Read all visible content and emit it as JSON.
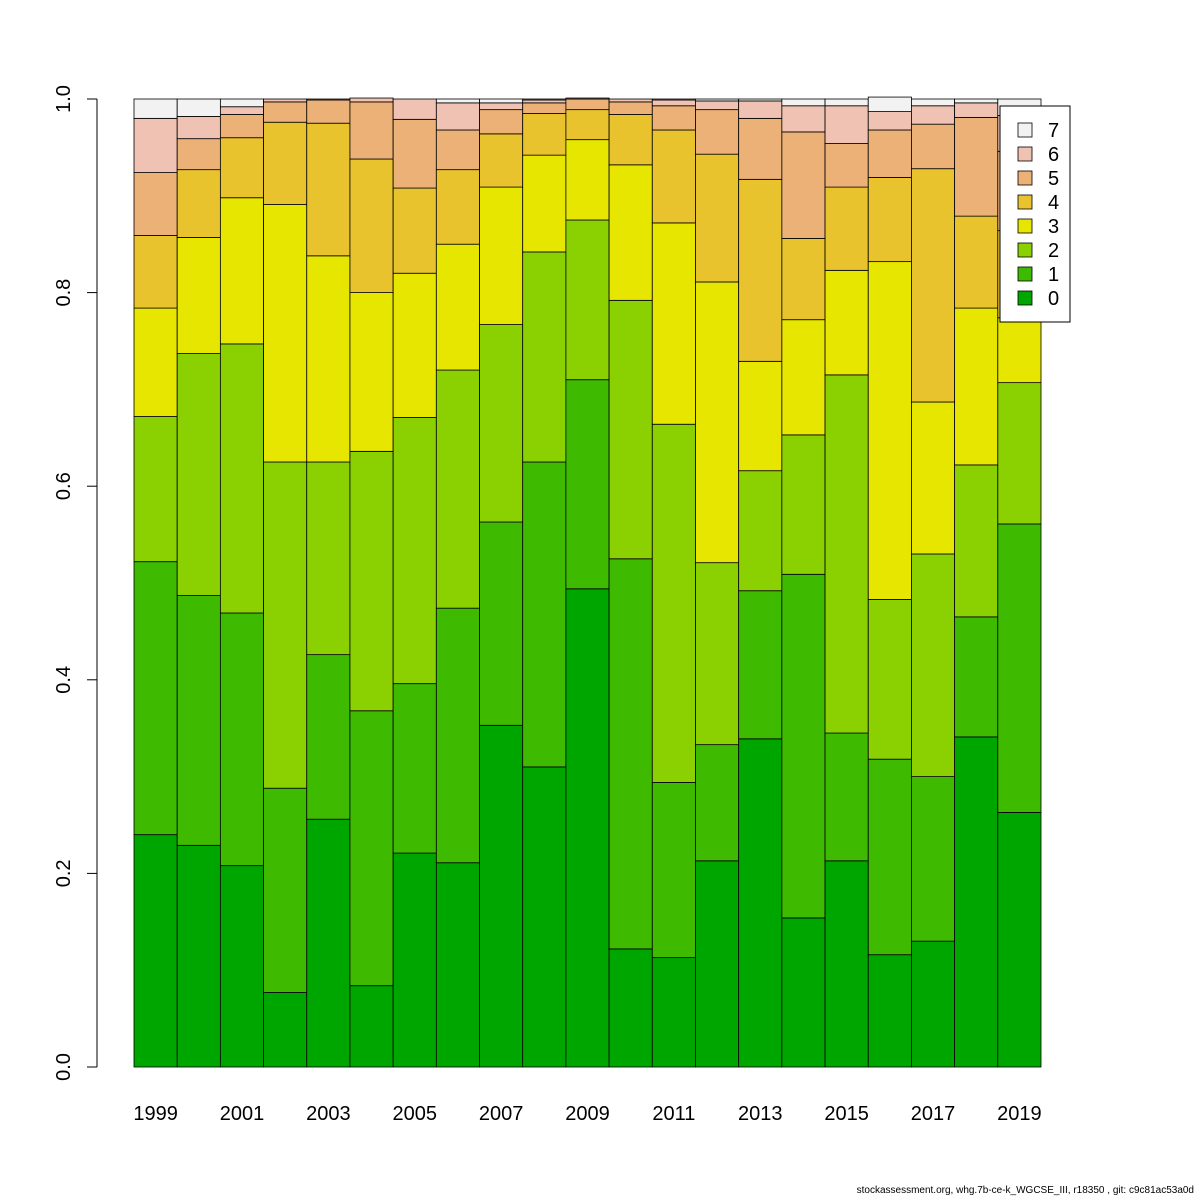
{
  "chart_data": {
    "type": "bar",
    "stacked": true,
    "title": "",
    "xlabel": "",
    "ylabel": "",
    "ylim": [
      0,
      1
    ],
    "yticks": [
      "0.0",
      "0.2",
      "0.4",
      "0.6",
      "0.8",
      "1.0"
    ],
    "ytick_values": [
      0,
      0.2,
      0.4,
      0.6,
      0.8,
      1.0
    ],
    "categories": [
      "1999",
      "2000",
      "2001",
      "2002",
      "2003",
      "2004",
      "2005",
      "2006",
      "2007",
      "2008",
      "2009",
      "2010",
      "2011",
      "2012",
      "2013",
      "2014",
      "2015",
      "2016",
      "2017",
      "2018",
      "2019"
    ],
    "xtick_labels": [
      "1999",
      "",
      "2001",
      "",
      "2003",
      "",
      "2005",
      "",
      "2007",
      "",
      "2009",
      "",
      "2011",
      "",
      "2013",
      "",
      "2015",
      "",
      "2017",
      "",
      "2019"
    ],
    "grid": false,
    "legend_position": "top-right",
    "series": [
      {
        "name": "0",
        "color": "#00A600",
        "values": [
          0.24,
          0.229,
          0.208,
          0.077,
          0.256,
          0.084,
          0.221,
          0.211,
          0.353,
          0.31,
          0.494,
          0.122,
          0.113,
          0.213,
          0.339,
          0.154,
          0.213,
          0.116,
          0.13,
          0.341,
          0.263
        ]
      },
      {
        "name": "1",
        "color": "#3EBB00",
        "values": [
          0.282,
          0.258,
          0.261,
          0.211,
          0.17,
          0.284,
          0.175,
          0.263,
          0.21,
          0.315,
          0.216,
          0.403,
          0.181,
          0.12,
          0.153,
          0.355,
          0.132,
          0.202,
          0.17,
          0.124,
          0.298
        ]
      },
      {
        "name": "2",
        "color": "#8BD000",
        "values": [
          0.15,
          0.25,
          0.278,
          0.337,
          0.199,
          0.268,
          0.275,
          0.246,
          0.204,
          0.217,
          0.165,
          0.267,
          0.37,
          0.188,
          0.124,
          0.144,
          0.37,
          0.165,
          0.23,
          0.157,
          0.146
        ]
      },
      {
        "name": "3",
        "color": "#E6E600",
        "values": [
          0.112,
          0.12,
          0.151,
          0.266,
          0.213,
          0.164,
          0.149,
          0.13,
          0.142,
          0.1,
          0.083,
          0.14,
          0.208,
          0.29,
          0.113,
          0.119,
          0.108,
          0.349,
          0.157,
          0.162,
          0.067
        ]
      },
      {
        "name": "4",
        "color": "#E8C32E",
        "values": [
          0.075,
          0.07,
          0.062,
          0.085,
          0.137,
          0.138,
          0.088,
          0.077,
          0.055,
          0.043,
          0.031,
          0.052,
          0.096,
          0.132,
          0.188,
          0.084,
          0.086,
          0.087,
          0.241,
          0.095,
          0.09
        ]
      },
      {
        "name": "5",
        "color": "#ECB176",
        "values": [
          0.065,
          0.032,
          0.024,
          0.021,
          0.024,
          0.059,
          0.071,
          0.041,
          0.025,
          0.011,
          0.011,
          0.013,
          0.025,
          0.046,
          0.063,
          0.11,
          0.045,
          0.049,
          0.046,
          0.102,
          0.082
        ]
      },
      {
        "name": "6",
        "color": "#EFC2B3",
        "values": [
          0.056,
          0.023,
          0.008,
          0.003,
          0.001,
          0.004,
          0.021,
          0.028,
          0.007,
          0.003,
          0.001,
          0.003,
          0.006,
          0.009,
          0.018,
          0.027,
          0.039,
          0.019,
          0.019,
          0.015,
          0.037
        ]
      },
      {
        "name": "7",
        "color": "#F2F2F2",
        "values": [
          0.02,
          0.018,
          0.008,
          0.0,
          0.0,
          0.0,
          0.0,
          0.004,
          0.004,
          0.001,
          0.0,
          0.0,
          0.001,
          0.002,
          0.002,
          0.007,
          0.007,
          0.015,
          0.007,
          0.004,
          0.017
        ]
      }
    ],
    "legend_order": [
      "7",
      "6",
      "5",
      "4",
      "3",
      "2",
      "1",
      "0"
    ]
  },
  "footer": {
    "text": "stockassessment.org, whg.7b-ce-k_WGCSE_III, r18350 , git: c9c81ac53a0d"
  }
}
